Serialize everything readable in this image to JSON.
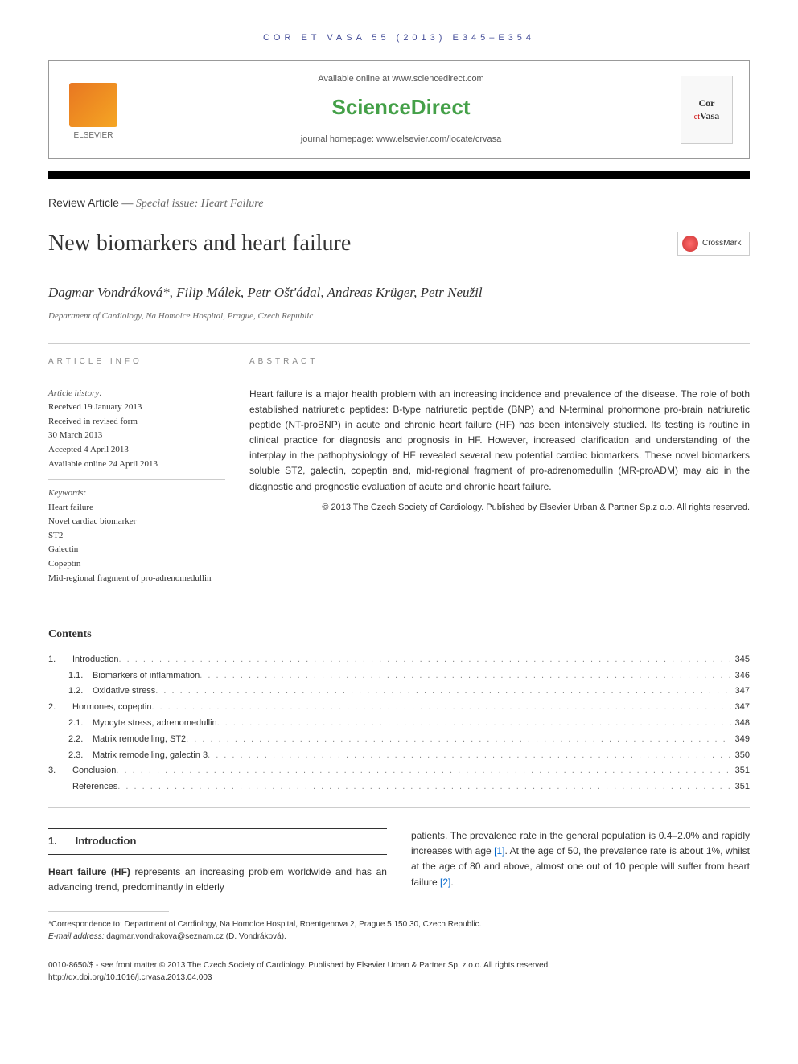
{
  "header": {
    "runningHead": "COR ET VASA 55 (2013) E345–E354",
    "availableText": "Available online at www.sciencedirect.com",
    "scienceDirect": "ScienceDirect",
    "journalHomepage": "journal homepage: www.elsevier.com/locate/crvasa",
    "elsevierLabel": "ELSEVIER",
    "journalName": "Cor et Vasa"
  },
  "articleType": {
    "bold": "Review Article",
    "separator": " — ",
    "italic": "Special issue: Heart Failure"
  },
  "title": "New biomarkers and heart failure",
  "crossmarkLabel": "CrossMark",
  "authors": "Dagmar Vondráková*, Filip Málek, Petr Ošt'ádal, Andreas Krüger, Petr Neužil",
  "affiliation": "Department of Cardiology, Na Homolce Hospital, Prague, Czech Republic",
  "labels": {
    "articleInfo": "ARTICLE INFO",
    "abstract": "ABSTRACT"
  },
  "articleInfo": {
    "historyLabel": "Article history:",
    "history": [
      "Received 19 January 2013",
      "Received in revised form",
      "30 March 2013",
      "Accepted 4 April 2013",
      "Available online 24 April 2013"
    ],
    "keywordsLabel": "Keywords:",
    "keywords": [
      "Heart failure",
      "Novel cardiac biomarker",
      "ST2",
      "Galectin",
      "Copeptin",
      "Mid-regional fragment of pro-adrenomedullin"
    ]
  },
  "abstract": "Heart failure is a major health problem with an increasing incidence and prevalence of the disease. The role of both established natriuretic peptides: B-type natriuretic peptide (BNP) and N-terminal prohormone pro-brain natriuretic peptide (NT-proBNP) in acute and chronic heart failure (HF) has been intensively studied. Its testing is routine in clinical practice for diagnosis and prognosis in HF. However, increased clarification and understanding of the interplay in the pathophysiology of HF revealed several new potential cardiac biomarkers. These novel biomarkers soluble ST2, galectin, copeptin and, mid-regional fragment of pro-adrenomedullin (MR-proADM) may aid in the diagnostic and prognostic evaluation of acute and chronic heart failure.",
  "copyright": "© 2013 The Czech Society of Cardiology. Published by Elsevier Urban & Partner Sp.z o.o. All rights reserved.",
  "contents": {
    "title": "Contents",
    "items": [
      {
        "num": "1.",
        "text": "Introduction",
        "page": "345"
      },
      {
        "subnum": "1.1.",
        "text": "Biomarkers of inflammation",
        "page": "346"
      },
      {
        "subnum": "1.2.",
        "text": "Oxidative stress",
        "page": "347"
      },
      {
        "num": "2.",
        "text": "Hormones, copeptin",
        "page": "347"
      },
      {
        "subnum": "2.1.",
        "text": "Myocyte stress, adrenomedullin",
        "page": "348"
      },
      {
        "subnum": "2.2.",
        "text": "Matrix remodelling, ST2",
        "page": "349"
      },
      {
        "subnum": "2.3.",
        "text": "Matrix remodelling, galectin 3",
        "page": "350"
      },
      {
        "num": "3.",
        "text": "Conclusion",
        "page": "351"
      },
      {
        "num": "",
        "text": "References",
        "page": "351"
      }
    ]
  },
  "body": {
    "sectionNum": "1.",
    "sectionTitle": "Introduction",
    "col1": "Heart failure (HF) represents an increasing problem worldwide and has an advancing trend, predominantly in elderly",
    "col2a": "patients. The prevalence rate in the general population is 0.4–2.0% and rapidly increases with age ",
    "ref1": "[1]",
    "col2b": ". At the age of 50, the prevalence rate is about 1%, whilst at the age of 80 and above, almost one out of 10 people will suffer from heart failure ",
    "ref2": "[2]",
    "col2c": ".",
    "boldTerm": "Heart failure (HF)"
  },
  "footer": {
    "correspondence": "*Correspondence to: Department of Cardiology, Na Homolce Hospital, Roentgenova 2, Prague 5 150 30, Czech Republic.",
    "emailLabel": "E-mail address:",
    "email": "dagmar.vondrakova@seznam.cz (D. Vondráková).",
    "issn": "0010-8650/$ - see front matter © 2013 The Czech Society of Cardiology. Published by Elsevier Urban & Partner Sp. z.o.o. All rights reserved.",
    "doi": "http://dx.doi.org/10.1016/j.crvasa.2013.04.003"
  },
  "colors": {
    "scienceDirectGreen": "#44a048",
    "headerBlue": "#424b97",
    "linkBlue": "#0066cc",
    "elsevierOrange": "#e87722"
  }
}
